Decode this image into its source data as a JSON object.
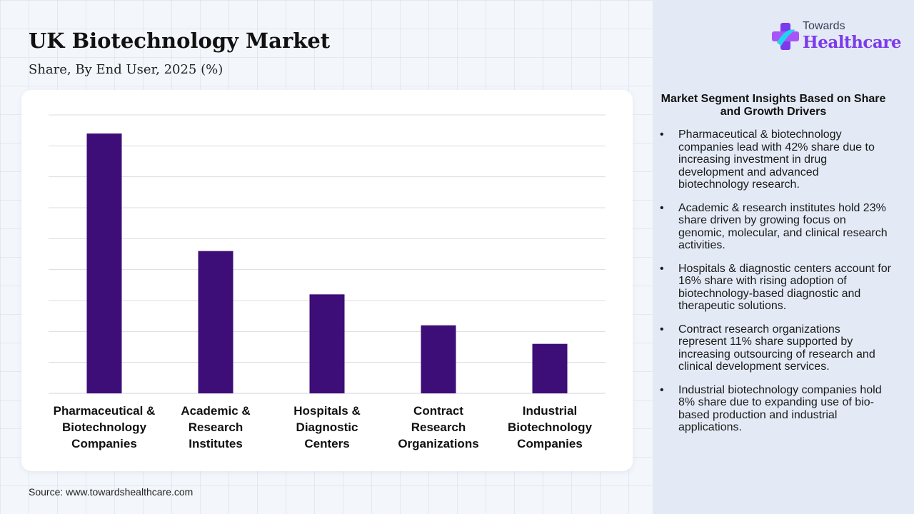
{
  "header": {
    "title": "UK Biotechnology Market",
    "subtitle": "Share, By End User, 2025 (%)"
  },
  "logo": {
    "line1": "Towards",
    "line2": "Healthcare",
    "icon": "medical-cross-icon"
  },
  "source": "Source: www.towardshealthcare.com",
  "insights": {
    "title": "Market Segment Insights Based on Share and Growth Drivers",
    "bullet": "•",
    "items": [
      "Pharmaceutical & biotechnology companies lead with 42% share due to increasing investment in drug development and advanced biotechnology research.",
      "Academic & research institutes hold 23% share driven by growing focus on genomic, molecular, and clinical research activities.",
      "Hospitals & diagnostic centers account for 16% share with rising adoption of biotechnology-based diagnostic and therapeutic solutions.",
      "Contract research organizations represent 11% share supported by increasing outsourcing of research and clinical development services.",
      "Industrial biotechnology companies hold 8% share due to expanding use of bio-based production and industrial applications."
    ]
  },
  "colors": {
    "bar": "#3d0d78",
    "grid": "#d9dce3"
  },
  "chart_data": {
    "type": "bar",
    "categories": [
      "Pharmaceutical & Biotechnology Companies",
      "Academic & Research Institutes",
      "Hospitals & Diagnostic Centers",
      "Contract Research Organizations",
      "Industrial Biotechnology Companies"
    ],
    "category_lines": [
      [
        "Pharmaceutical &",
        "Biotechnology",
        "Companies"
      ],
      [
        "Academic &",
        "Research",
        "Institutes"
      ],
      [
        "Hospitals &",
        "Diagnostic",
        "Centers"
      ],
      [
        "Contract",
        "Research",
        "Organizations"
      ],
      [
        "Industrial",
        "Biotechnology",
        "Companies"
      ]
    ],
    "values": [
      42,
      23,
      16,
      11,
      8
    ],
    "title": "UK Biotechnology Market",
    "xlabel": "",
    "ylabel": "",
    "ylim": [
      0,
      45
    ],
    "grid": true,
    "y_axis_labels_shown": false
  }
}
